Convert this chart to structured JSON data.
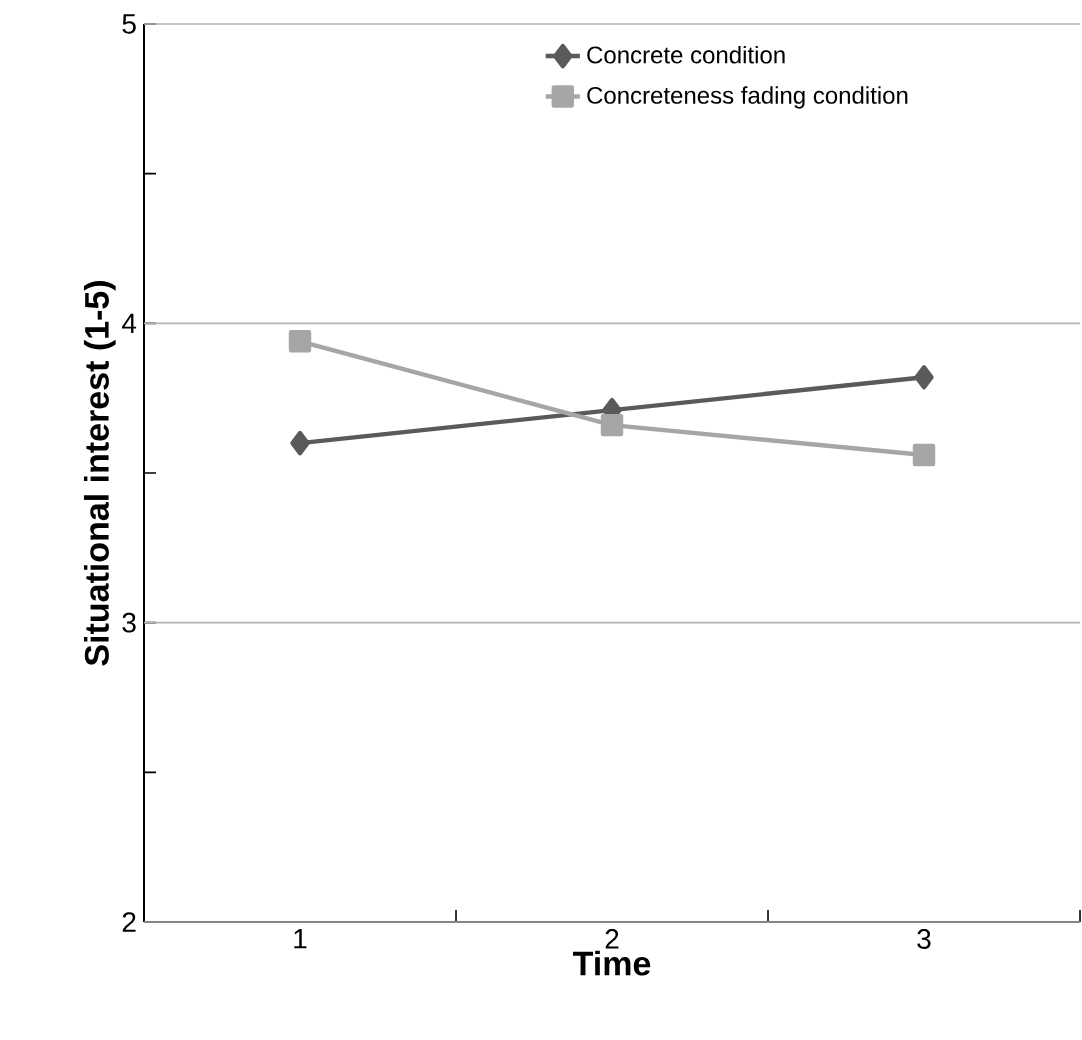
{
  "chart_data": {
    "type": "line",
    "xlabel": "Time",
    "ylabel": "Situational interest (1-5)",
    "categories": [
      "1",
      "2",
      "3"
    ],
    "series": [
      {
        "name": "Concrete condition",
        "color": "#5a5a5a",
        "marker": "diamond",
        "values": [
          3.6,
          3.71,
          3.82
        ]
      },
      {
        "name": "Concreteness fading condition",
        "color": "#a6a6a6",
        "marker": "square",
        "values": [
          3.94,
          3.66,
          3.56
        ]
      }
    ],
    "ylim": [
      2,
      5
    ],
    "yticks": [
      2,
      {
        "value": 2.5,
        "label": null
      },
      3,
      {
        "value": 3.5,
        "label": null
      },
      4,
      {
        "value": 4.5,
        "label": null
      },
      5
    ],
    "grid": "y",
    "legend": "top right",
    "line_style": "solid"
  }
}
